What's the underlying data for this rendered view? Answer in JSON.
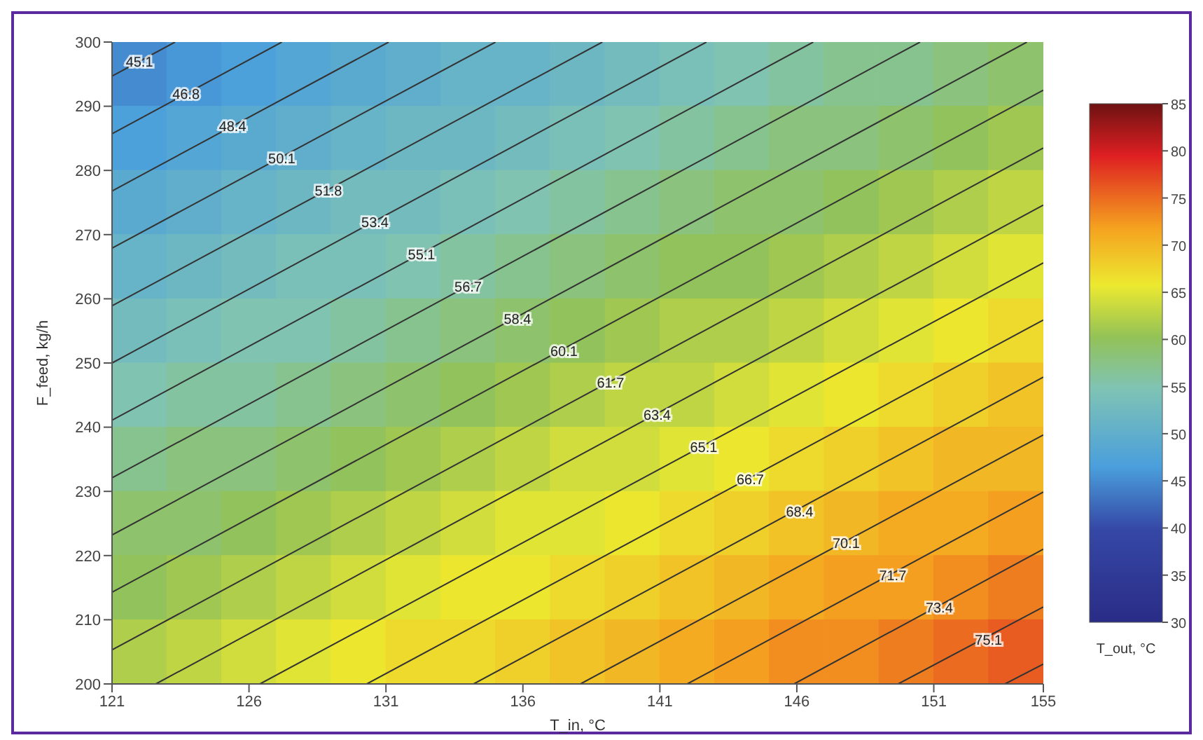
{
  "chart_data": {
    "type": "heatmap",
    "xlabel": "T_in, °C",
    "ylabel": "F_feed, kg/h",
    "clabel": "T_out, °C",
    "xlim": [
      121,
      155
    ],
    "xticks": [
      121,
      126,
      131,
      136,
      141,
      146,
      151,
      155
    ],
    "ylim": [
      200,
      300
    ],
    "yticks": [
      200,
      210,
      220,
      230,
      240,
      250,
      260,
      270,
      280,
      290,
      300
    ],
    "clim": [
      30,
      85
    ],
    "cticks": [
      30,
      35,
      40,
      45,
      50,
      55,
      60,
      65,
      70,
      75,
      80,
      85
    ],
    "cells": [
      [
        45,
        46,
        47,
        48,
        49,
        50,
        51,
        51,
        52,
        53,
        54,
        55,
        56,
        57,
        57,
        58,
        59
      ],
      [
        47,
        48,
        49,
        50,
        51,
        52,
        52,
        53,
        54,
        55,
        56,
        57,
        58,
        58,
        59,
        60,
        61
      ],
      [
        49,
        50,
        51,
        52,
        53,
        53,
        54,
        55,
        56,
        57,
        58,
        59,
        59,
        60,
        61,
        62,
        63
      ],
      [
        51,
        52,
        53,
        54,
        54,
        55,
        56,
        57,
        58,
        59,
        60,
        60,
        61,
        62,
        63,
        64,
        65
      ],
      [
        53,
        54,
        55,
        55,
        56,
        57,
        58,
        59,
        60,
        61,
        62,
        62,
        63,
        64,
        65,
        66,
        67
      ],
      [
        55,
        56,
        56,
        57,
        58,
        59,
        60,
        61,
        62,
        63,
        63,
        64,
        65,
        66,
        67,
        68,
        69
      ],
      [
        57,
        58,
        58,
        59,
        60,
        61,
        62,
        63,
        64,
        64,
        65,
        66,
        67,
        68,
        69,
        70,
        70
      ],
      [
        59,
        59,
        60,
        61,
        62,
        63,
        64,
        65,
        65,
        66,
        67,
        68,
        69,
        70,
        71,
        71,
        72
      ],
      [
        60,
        61,
        62,
        63,
        64,
        65,
        66,
        66,
        67,
        68,
        69,
        70,
        71,
        72,
        72,
        73,
        74
      ],
      [
        62,
        63,
        64,
        65,
        66,
        67,
        67,
        68,
        69,
        70,
        71,
        72,
        73,
        73,
        74,
        75,
        76
      ]
    ],
    "series": [
      {
        "type": "line",
        "color": "#333333",
        "x": [
          121,
          123.3
        ],
        "values": [
          294.7,
          300
        ]
      },
      {
        "type": "line",
        "color": "#333333",
        "x": [
          121,
          127.2
        ],
        "values": [
          285.7,
          300
        ]
      },
      {
        "type": "line",
        "color": "#333333",
        "x": [
          121,
          131.1
        ],
        "values": [
          276.8,
          300
        ]
      },
      {
        "type": "line",
        "color": "#333333",
        "x": [
          121,
          135.0
        ],
        "values": [
          267.9,
          300
        ]
      },
      {
        "type": "line",
        "color": "#333333",
        "x": [
          121,
          138.9
        ],
        "values": [
          258.9,
          300
        ]
      },
      {
        "type": "line",
        "color": "#333333",
        "x": [
          121,
          142.7
        ],
        "values": [
          250.0,
          300
        ]
      },
      {
        "type": "line",
        "color": "#333333",
        "x": [
          121,
          146.6
        ],
        "values": [
          241.1,
          300
        ]
      },
      {
        "type": "line",
        "color": "#333333",
        "x": [
          121,
          150.5
        ],
        "values": [
          232.1,
          300
        ]
      },
      {
        "type": "line",
        "color": "#333333",
        "x": [
          121,
          154.4
        ],
        "values": [
          223.2,
          300
        ]
      },
      {
        "type": "line",
        "color": "#333333",
        "x": [
          121,
          155
        ],
        "values": [
          214.3,
          292.5
        ]
      },
      {
        "type": "line",
        "color": "#333333",
        "x": [
          121,
          155
        ],
        "values": [
          205.3,
          283.5
        ]
      },
      {
        "type": "line",
        "color": "#333333",
        "x": [
          122.6,
          155
        ],
        "values": [
          200,
          274.6
        ]
      },
      {
        "type": "line",
        "color": "#333333",
        "x": [
          126.4,
          155
        ],
        "values": [
          200,
          265.6
        ]
      },
      {
        "type": "line",
        "color": "#333333",
        "x": [
          130.3,
          155
        ],
        "values": [
          200,
          256.7
        ]
      },
      {
        "type": "line",
        "color": "#333333",
        "x": [
          134.2,
          155
        ],
        "values": [
          200,
          247.8
        ]
      },
      {
        "type": "line",
        "color": "#333333",
        "x": [
          138.1,
          155
        ],
        "values": [
          200,
          238.8
        ]
      },
      {
        "type": "line",
        "color": "#333333",
        "x": [
          142.0,
          155
        ],
        "values": [
          200,
          229.9
        ]
      },
      {
        "type": "line",
        "color": "#333333",
        "x": [
          145.9,
          155
        ],
        "values": [
          200,
          221.0
        ]
      },
      {
        "type": "line",
        "color": "#333333",
        "x": [
          149.7,
          155
        ],
        "values": [
          200,
          212.0
        ]
      },
      {
        "type": "line",
        "color": "#333333",
        "x": [
          153.6,
          155
        ],
        "values": [
          200,
          203.1
        ]
      }
    ],
    "annotations": [
      {
        "text": "45.1",
        "x": 122,
        "y": 297
      },
      {
        "text": "46.8",
        "x": 123.7,
        "y": 292
      },
      {
        "text": "48.4",
        "x": 125.4,
        "y": 287
      },
      {
        "text": "50.1",
        "x": 127.2,
        "y": 282
      },
      {
        "text": "51.8",
        "x": 128.9,
        "y": 277
      },
      {
        "text": "53.4",
        "x": 130.6,
        "y": 272
      },
      {
        "text": "55.1",
        "x": 132.3,
        "y": 267
      },
      {
        "text": "56.7",
        "x": 134.0,
        "y": 262
      },
      {
        "text": "58.4",
        "x": 135.8,
        "y": 257
      },
      {
        "text": "60.1",
        "x": 137.5,
        "y": 252
      },
      {
        "text": "61.7",
        "x": 139.2,
        "y": 247
      },
      {
        "text": "63.4",
        "x": 140.9,
        "y": 242
      },
      {
        "text": "65.1",
        "x": 142.6,
        "y": 237
      },
      {
        "text": "66.7",
        "x": 144.3,
        "y": 232
      },
      {
        "text": "68.4",
        "x": 146.1,
        "y": 227
      },
      {
        "text": "70.1",
        "x": 147.8,
        "y": 222
      },
      {
        "text": "71.7",
        "x": 149.5,
        "y": 217
      },
      {
        "text": "73.4",
        "x": 151.2,
        "y": 212
      },
      {
        "text": "75.1",
        "x": 153.0,
        "y": 207
      }
    ]
  }
}
